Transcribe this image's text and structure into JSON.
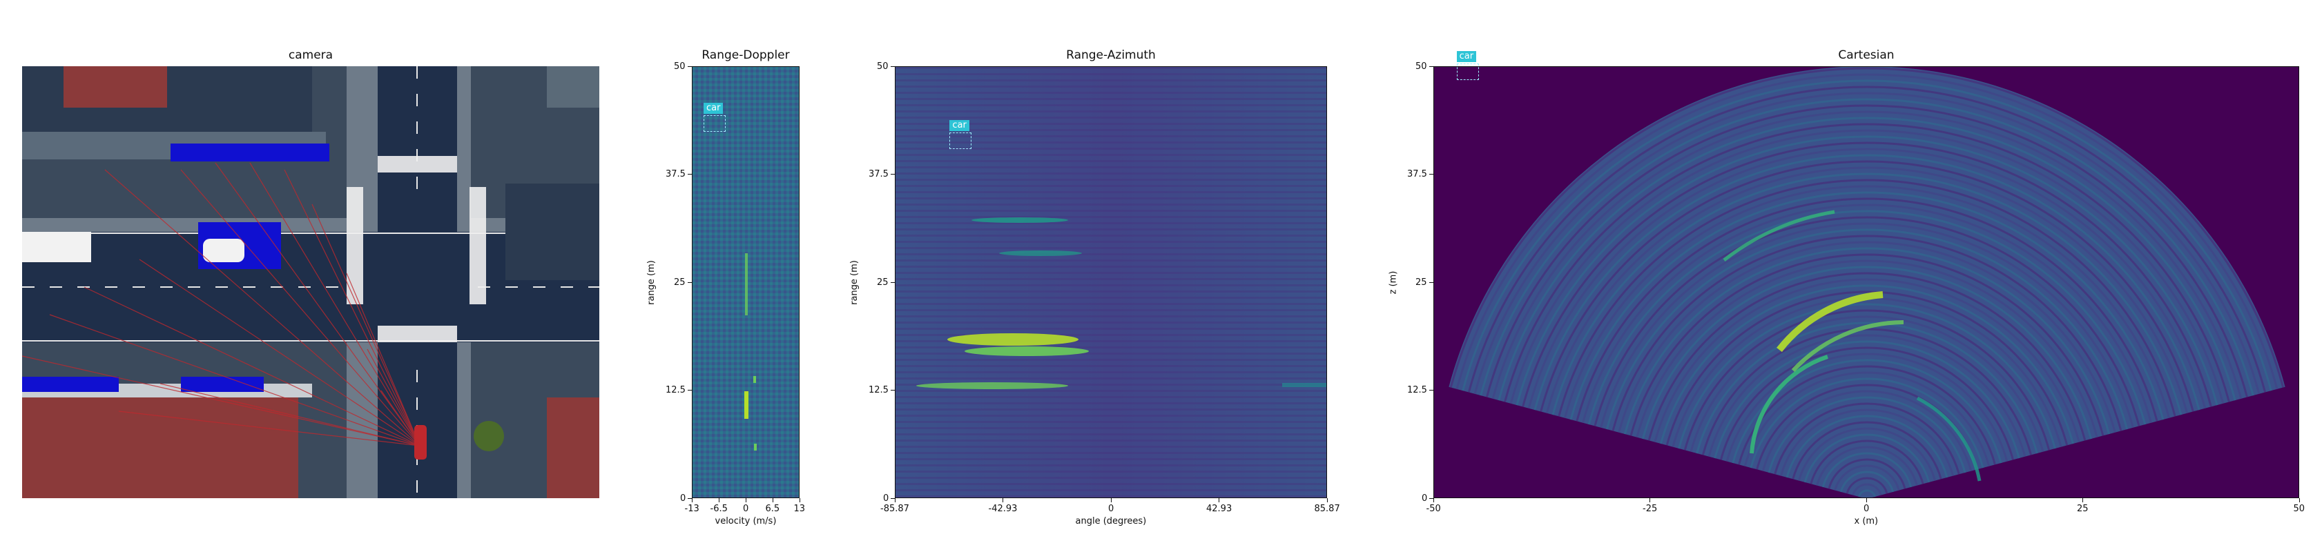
{
  "chart_data": [
    {
      "type": "image",
      "title": "camera",
      "detections": []
    },
    {
      "type": "heatmap",
      "title": "Range-Doppler",
      "xlabel": "velocity (m/s)",
      "ylabel": "range (m)",
      "xlim": [
        -13,
        13
      ],
      "ylim": [
        0,
        50
      ],
      "xticks": [
        "-13",
        "-6.5",
        "0",
        "6.5",
        "13"
      ],
      "yticks": [
        "0",
        "12.5",
        "25",
        "37.5",
        "50"
      ],
      "detections": [
        {
          "label": "car",
          "x": -9.5,
          "y": 44
        }
      ],
      "colormap": "viridis"
    },
    {
      "type": "heatmap",
      "title": "Range-Azimuth",
      "xlabel": "angle (degrees)",
      "ylabel": "range (m)",
      "xlim": [
        -85.87,
        85.87
      ],
      "ylim": [
        0,
        50
      ],
      "xticks": [
        "-85.87",
        "-42.93",
        "0",
        "42.93",
        "85.87"
      ],
      "yticks": [
        "0",
        "12.5",
        "25",
        "37.5",
        "50"
      ],
      "detections": [
        {
          "label": "car",
          "x": -63,
          "y": 42
        }
      ],
      "colormap": "viridis"
    },
    {
      "type": "heatmap",
      "title": "Cartesian",
      "xlabel": "x (m)",
      "ylabel": "z (m)",
      "xlim": [
        -50,
        50
      ],
      "ylim": [
        0,
        50
      ],
      "xticks": [
        "-50",
        "-25",
        "0",
        "25",
        "50"
      ],
      "yticks": [
        "0",
        "12.5",
        "25",
        "37.5",
        "50"
      ],
      "detections": [
        {
          "label": "car",
          "x": -47,
          "y": 50
        }
      ],
      "colormap": "viridis"
    }
  ],
  "colors": {
    "viridis_low": "#440154",
    "viridis_mid": "#31688e",
    "viridis_hi": "#fde725",
    "detection": "#2ec4d6",
    "radar_ray": "#c0282d",
    "road": "#1f2f4a"
  }
}
